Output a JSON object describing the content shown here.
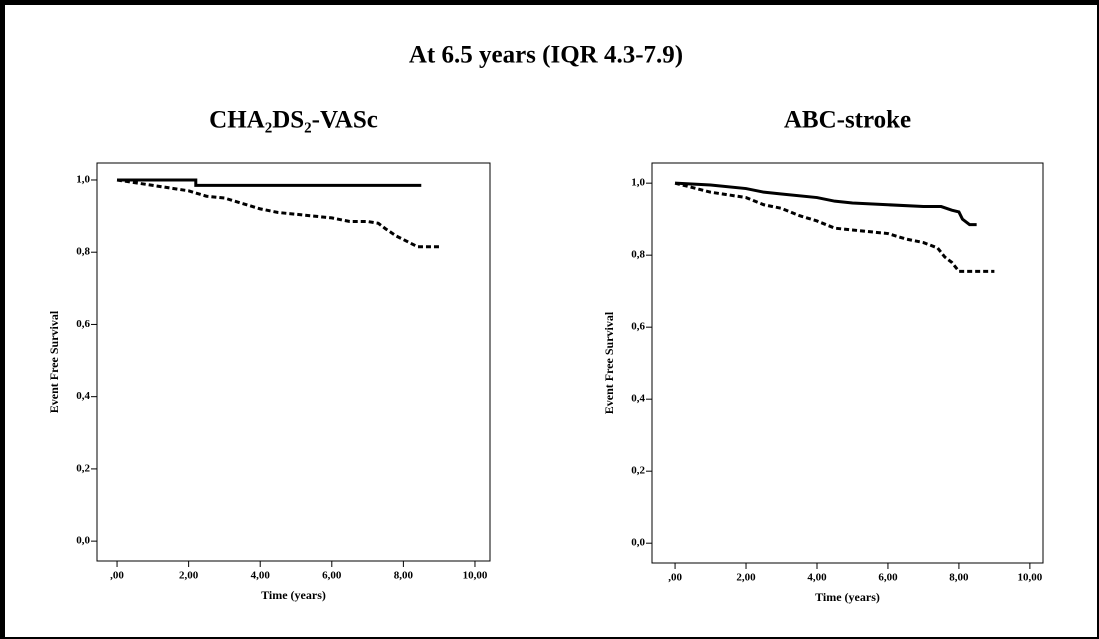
{
  "title": "At 6.5 years (IQR 4.3-7.9)",
  "chart_data": [
    {
      "type": "line",
      "title": "CHA₂DS₂-VASc",
      "xlabel": "Time (years)",
      "ylabel": "Event Free Survival",
      "xlim": [
        -0.56,
        10.42
      ],
      "ylim": [
        -0.055,
        1.047
      ],
      "xticks": [
        {
          "value": 0,
          "label": ",00"
        },
        {
          "value": 2,
          "label": "2,00"
        },
        {
          "value": 4,
          "label": "4,00"
        },
        {
          "value": 6,
          "label": "6,00"
        },
        {
          "value": 8,
          "label": "8,00"
        },
        {
          "value": 10,
          "label": "10,00"
        }
      ],
      "yticks": [
        {
          "value": 0,
          "label": "0,0"
        },
        {
          "value": 0.2,
          "label": "0,2"
        },
        {
          "value": 0.4,
          "label": "0,4"
        },
        {
          "value": 0.6,
          "label": "0,6"
        },
        {
          "value": 0.8,
          "label": "0,8"
        },
        {
          "value": 1,
          "label": "1,0"
        }
      ],
      "series": [
        {
          "color": "#000000",
          "style": "solid",
          "x": [
            0,
            2.2,
            2.2,
            8.5
          ],
          "values": [
            1.0,
            1.0,
            0.985,
            0.985
          ]
        },
        {
          "color": "#000000",
          "style": "dashed",
          "x": [
            0,
            1,
            2,
            2.5,
            3,
            3.5,
            4,
            4.5,
            5,
            5.5,
            6,
            6.5,
            7,
            7.3,
            7.5,
            7.8,
            8.2,
            8.4,
            9.0
          ],
          "values": [
            1.0,
            0.985,
            0.97,
            0.955,
            0.95,
            0.935,
            0.92,
            0.91,
            0.905,
            0.9,
            0.895,
            0.885,
            0.885,
            0.88,
            0.865,
            0.845,
            0.825,
            0.815,
            0.815
          ]
        }
      ]
    },
    {
      "type": "line",
      "title": "ABC-stroke",
      "xlabel": "Time (years)",
      "ylabel": "Event Free Survival",
      "xlim": [
        -0.65,
        10.37
      ],
      "ylim": [
        -0.055,
        1.056
      ],
      "xticks": [
        {
          "value": 0,
          "label": ",00"
        },
        {
          "value": 2,
          "label": "2,00"
        },
        {
          "value": 4,
          "label": "4,00"
        },
        {
          "value": 6,
          "label": "6,00"
        },
        {
          "value": 8,
          "label": "8,00"
        },
        {
          "value": 10,
          "label": "10,00"
        }
      ],
      "yticks": [
        {
          "value": 0,
          "label": "0,0"
        },
        {
          "value": 0.2,
          "label": "0,2"
        },
        {
          "value": 0.4,
          "label": "0,4"
        },
        {
          "value": 0.6,
          "label": "0,6"
        },
        {
          "value": 0.8,
          "label": "0,8"
        },
        {
          "value": 1,
          "label": "1,0"
        }
      ],
      "series": [
        {
          "color": "#000000",
          "style": "solid",
          "x": [
            0,
            1,
            2,
            2.5,
            3,
            4,
            4.5,
            5,
            6,
            7,
            7.5,
            7.8,
            8.0,
            8.1,
            8.3,
            8.5
          ],
          "values": [
            1.0,
            0.995,
            0.985,
            0.975,
            0.97,
            0.96,
            0.95,
            0.945,
            0.94,
            0.935,
            0.935,
            0.925,
            0.92,
            0.9,
            0.885,
            0.885
          ]
        },
        {
          "color": "#000000",
          "style": "dashed",
          "x": [
            0,
            1,
            2,
            2.5,
            3,
            3.5,
            4,
            4.5,
            5,
            6,
            6.5,
            7,
            7.4,
            7.6,
            7.8,
            8.0,
            9.0
          ],
          "values": [
            1.0,
            0.975,
            0.96,
            0.94,
            0.93,
            0.91,
            0.895,
            0.875,
            0.87,
            0.86,
            0.845,
            0.835,
            0.82,
            0.795,
            0.78,
            0.755,
            0.755
          ]
        }
      ]
    }
  ]
}
